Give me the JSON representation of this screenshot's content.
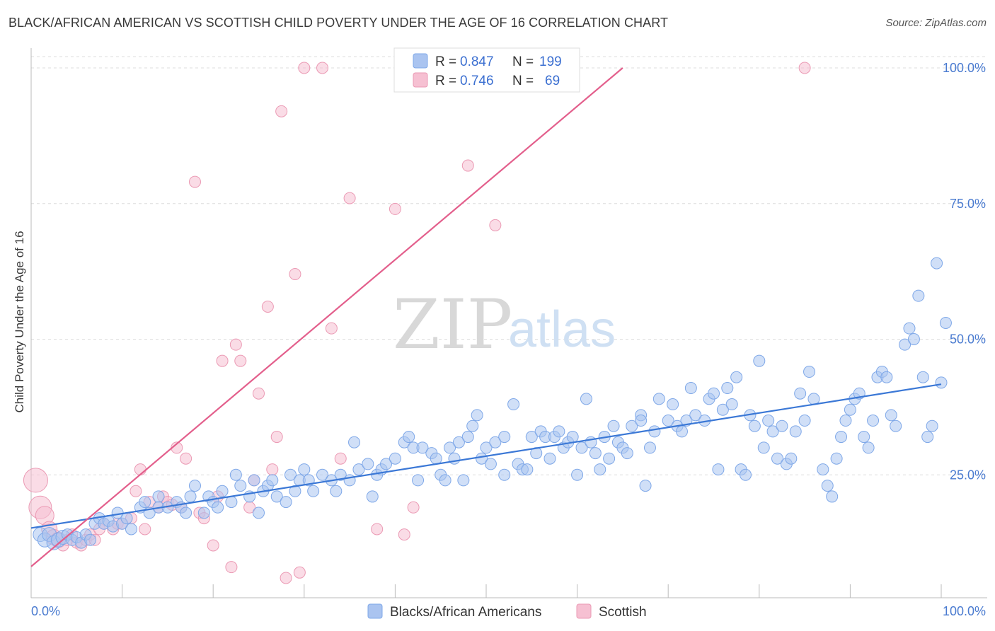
{
  "title": "BLACK/AFRICAN AMERICAN VS SCOTTISH CHILD POVERTY UNDER THE AGE OF 16 CORRELATION CHART",
  "source": "Source: ZipAtlas.com",
  "watermark": {
    "zip": "ZIP",
    "atlas": "atlas"
  },
  "legend": {
    "r_label": "R =",
    "n_label": "N =",
    "rows": [
      {
        "name": "Blacks/African Americans",
        "r": "0.847",
        "n": "199",
        "color": "#7fa8e8",
        "fill": "#aac4f0"
      },
      {
        "name": "Scottish",
        "r": "0.746",
        "n": "69",
        "color": "#eb9ab4",
        "fill": "#f6c0d2"
      }
    ]
  },
  "chart_data": {
    "type": "scatter",
    "title": "BLACK/AFRICAN AMERICAN VS SCOTTISH CHILD POVERTY UNDER THE AGE OF 16 CORRELATION CHART",
    "xlabel": "",
    "ylabel": "Child Poverty Under the Age of 16",
    "xlim": [
      0,
      100
    ],
    "ylim": [
      0,
      104
    ],
    "x_tick_labels": [
      "0.0%",
      "100.0%"
    ],
    "y_ticks": [
      25,
      50,
      75,
      100
    ],
    "y_tick_labels": [
      "25.0%",
      "50.0%",
      "75.0%",
      "100.0%"
    ],
    "grid": "horizontal dashed",
    "legend_position": "top-center",
    "bottom_legend": [
      "Blacks/African Americans",
      "Scottish"
    ],
    "series": [
      {
        "name": "Blacks/African Americans",
        "color": "#3b78d6",
        "r": 0.847,
        "n": 199,
        "trend": {
          "x0": 0,
          "y0": 15.2,
          "x1": 100,
          "y1": 41.7
        },
        "points": [
          [
            1,
            14
          ],
          [
            1.5,
            13
          ],
          [
            2,
            14
          ],
          [
            2.5,
            12.5
          ],
          [
            3,
            13
          ],
          [
            3.5,
            13.5
          ],
          [
            4,
            14
          ],
          [
            4.5,
            13
          ],
          [
            5,
            13.5
          ],
          [
            5.5,
            12.5
          ],
          [
            6,
            14
          ],
          [
            6.5,
            13
          ],
          [
            7,
            16
          ],
          [
            7.5,
            17
          ],
          [
            8,
            16
          ],
          [
            8.5,
            16.5
          ],
          [
            9,
            15.5
          ],
          [
            9.5,
            18
          ],
          [
            10,
            16
          ],
          [
            10.5,
            17
          ],
          [
            11,
            15
          ],
          [
            12,
            19
          ],
          [
            12.5,
            20
          ],
          [
            13,
            18
          ],
          [
            14,
            21
          ],
          [
            14,
            19
          ],
          [
            15,
            19
          ],
          [
            16,
            20
          ],
          [
            16.5,
            19
          ],
          [
            17,
            18
          ],
          [
            17.5,
            21
          ],
          [
            18,
            23
          ],
          [
            19,
            18
          ],
          [
            19.5,
            21
          ],
          [
            20,
            20
          ],
          [
            20.5,
            19
          ],
          [
            21,
            22
          ],
          [
            22,
            20
          ],
          [
            22.5,
            25
          ],
          [
            23,
            23
          ],
          [
            24,
            21
          ],
          [
            24.5,
            24
          ],
          [
            25,
            18
          ],
          [
            25.5,
            22
          ],
          [
            26,
            23
          ],
          [
            26.5,
            24
          ],
          [
            27,
            21
          ],
          [
            28,
            20
          ],
          [
            28.5,
            25
          ],
          [
            29,
            22
          ],
          [
            29.5,
            24
          ],
          [
            30,
            26
          ],
          [
            30.5,
            24
          ],
          [
            31,
            22
          ],
          [
            32,
            25
          ],
          [
            33,
            24
          ],
          [
            33.5,
            22
          ],
          [
            34,
            25
          ],
          [
            35,
            24
          ],
          [
            35.5,
            31
          ],
          [
            36,
            26
          ],
          [
            37,
            27
          ],
          [
            37.5,
            21
          ],
          [
            38,
            25
          ],
          [
            38.5,
            26
          ],
          [
            39,
            27
          ],
          [
            40,
            28
          ],
          [
            41,
            31
          ],
          [
            41.5,
            32
          ],
          [
            42,
            30
          ],
          [
            42.5,
            24
          ],
          [
            43,
            30
          ],
          [
            44,
            29
          ],
          [
            44.5,
            28
          ],
          [
            45,
            25
          ],
          [
            45.5,
            24
          ],
          [
            46,
            30
          ],
          [
            46.5,
            28
          ],
          [
            47,
            31
          ],
          [
            47.5,
            24
          ],
          [
            48,
            32
          ],
          [
            48.5,
            34
          ],
          [
            49,
            36
          ],
          [
            49.5,
            28
          ],
          [
            50,
            30
          ],
          [
            50.5,
            27
          ],
          [
            51,
            31
          ],
          [
            52,
            32
          ],
          [
            52,
            25
          ],
          [
            53,
            38
          ],
          [
            53.5,
            27
          ],
          [
            54,
            26
          ],
          [
            54.5,
            26
          ],
          [
            55,
            32
          ],
          [
            55.5,
            29
          ],
          [
            56,
            33
          ],
          [
            56.5,
            32
          ],
          [
            57,
            28
          ],
          [
            57.5,
            32
          ],
          [
            58,
            33
          ],
          [
            58.5,
            30
          ],
          [
            59,
            31
          ],
          [
            59.5,
            32
          ],
          [
            60,
            25
          ],
          [
            60.5,
            30
          ],
          [
            61,
            39
          ],
          [
            61.5,
            31
          ],
          [
            62,
            29
          ],
          [
            62.5,
            26
          ],
          [
            63,
            32
          ],
          [
            63.5,
            28
          ],
          [
            64,
            34
          ],
          [
            64.5,
            31
          ],
          [
            65,
            30
          ],
          [
            65.5,
            29
          ],
          [
            66,
            34
          ],
          [
            67,
            36
          ],
          [
            67,
            35
          ],
          [
            67.5,
            23
          ],
          [
            68,
            30
          ],
          [
            68.5,
            33
          ],
          [
            69,
            39
          ],
          [
            70,
            35
          ],
          [
            70.5,
            38
          ],
          [
            71,
            34
          ],
          [
            71.5,
            33
          ],
          [
            72,
            35
          ],
          [
            72.5,
            41
          ],
          [
            73,
            36
          ],
          [
            74,
            35
          ],
          [
            74.5,
            39
          ],
          [
            75,
            40
          ],
          [
            75.5,
            26
          ],
          [
            76,
            37
          ],
          [
            76.5,
            41
          ],
          [
            77,
            38
          ],
          [
            77.5,
            43
          ],
          [
            78,
            26
          ],
          [
            78.5,
            25
          ],
          [
            79,
            36
          ],
          [
            79.5,
            34
          ],
          [
            80,
            46
          ],
          [
            80.5,
            30
          ],
          [
            81,
            35
          ],
          [
            81.5,
            33
          ],
          [
            82,
            28
          ],
          [
            82.5,
            34
          ],
          [
            83,
            27
          ],
          [
            83.5,
            28
          ],
          [
            84,
            33
          ],
          [
            84.5,
            40
          ],
          [
            85,
            35
          ],
          [
            85.5,
            44
          ],
          [
            86,
            39
          ],
          [
            87,
            26
          ],
          [
            87.5,
            23
          ],
          [
            88,
            21
          ],
          [
            88.5,
            28
          ],
          [
            89,
            32
          ],
          [
            89.5,
            35
          ],
          [
            90,
            37
          ],
          [
            90.5,
            39
          ],
          [
            91,
            40
          ],
          [
            91.5,
            32
          ],
          [
            92,
            30
          ],
          [
            92.5,
            35
          ],
          [
            93,
            43
          ],
          [
            93.5,
            44
          ],
          [
            94,
            43
          ],
          [
            94.5,
            36
          ],
          [
            95,
            34
          ],
          [
            96,
            49
          ],
          [
            96.5,
            52
          ],
          [
            97,
            50
          ],
          [
            97.5,
            58
          ],
          [
            98,
            43
          ],
          [
            98.5,
            32
          ],
          [
            99,
            34
          ],
          [
            99.5,
            64
          ],
          [
            100,
            42
          ],
          [
            100.5,
            53
          ]
        ]
      },
      {
        "name": "Scottish",
        "color": "#e35f8c",
        "r": 0.746,
        "n": 69,
        "trend": {
          "x0": 0,
          "y0": 8.1,
          "x1": 65,
          "y1": 100
        },
        "points": [
          [
            0.5,
            24
          ],
          [
            1,
            19
          ],
          [
            1.5,
            17.5
          ],
          [
            2,
            15
          ],
          [
            2.5,
            13.5
          ],
          [
            3,
            13
          ],
          [
            3.5,
            12
          ],
          [
            4,
            13
          ],
          [
            4.5,
            14
          ],
          [
            5,
            12.5
          ],
          [
            5.5,
            12
          ],
          [
            6,
            13
          ],
          [
            6.5,
            14
          ],
          [
            7,
            13
          ],
          [
            7.5,
            15
          ],
          [
            8,
            16
          ],
          [
            9,
            15
          ],
          [
            9.5,
            16
          ],
          [
            10,
            16
          ],
          [
            11,
            17
          ],
          [
            11.5,
            22
          ],
          [
            12,
            26
          ],
          [
            12.5,
            15
          ],
          [
            13,
            20
          ],
          [
            14,
            19
          ],
          [
            14.5,
            21
          ],
          [
            15,
            20
          ],
          [
            15.5,
            19.5
          ],
          [
            16,
            30
          ],
          [
            16.5,
            19
          ],
          [
            17,
            28
          ],
          [
            18,
            79
          ],
          [
            18.5,
            18
          ],
          [
            19,
            17
          ],
          [
            20,
            12
          ],
          [
            20.5,
            21
          ],
          [
            21,
            46
          ],
          [
            22,
            8
          ],
          [
            22.5,
            49
          ],
          [
            23,
            46
          ],
          [
            24,
            19
          ],
          [
            24.5,
            24
          ],
          [
            25,
            40
          ],
          [
            26,
            56
          ],
          [
            26.5,
            26
          ],
          [
            27,
            32
          ],
          [
            27.5,
            92
          ],
          [
            28,
            6
          ],
          [
            29,
            62
          ],
          [
            29.5,
            7
          ],
          [
            30,
            100
          ],
          [
            32,
            100
          ],
          [
            33,
            52
          ],
          [
            34,
            28
          ],
          [
            35,
            76
          ],
          [
            38,
            15
          ],
          [
            40,
            74
          ],
          [
            41,
            14
          ],
          [
            42,
            19
          ],
          [
            48,
            82
          ],
          [
            51,
            71
          ],
          [
            85,
            100
          ]
        ]
      }
    ]
  }
}
